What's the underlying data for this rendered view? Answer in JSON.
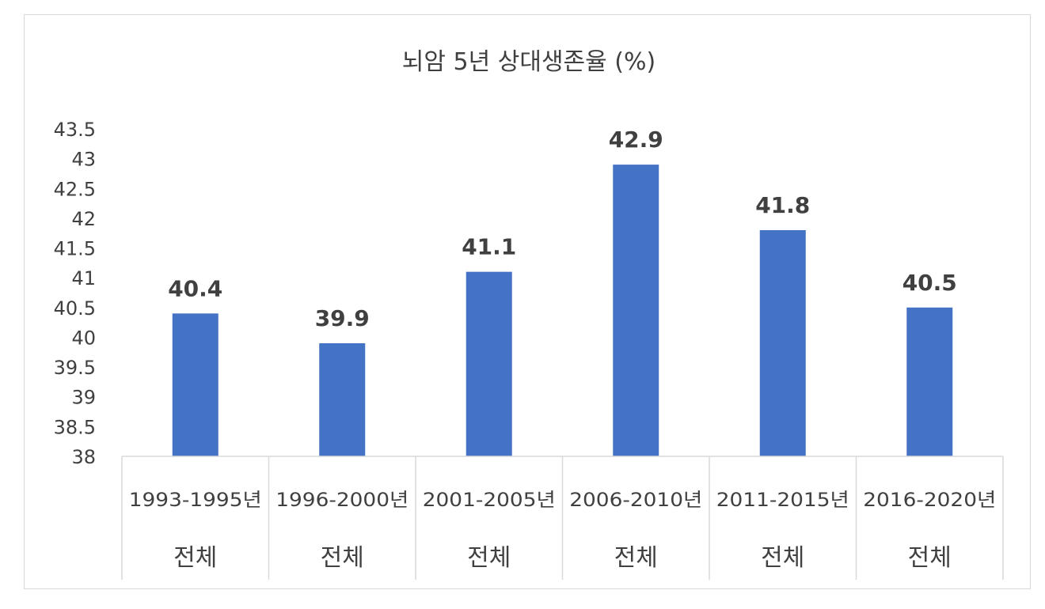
{
  "chart_data": {
    "type": "bar",
    "title": "뇌암 5년 상대생존율 (%)",
    "categories": [
      [
        "1993-1995년",
        "전체"
      ],
      [
        "1996-2000년",
        "전체"
      ],
      [
        "2001-2005년",
        "전체"
      ],
      [
        "2006-2010년",
        "전체"
      ],
      [
        "2011-2015년",
        "전체"
      ],
      [
        "2016-2020년",
        "전체"
      ]
    ],
    "values": [
      40.4,
      39.9,
      41.1,
      42.9,
      41.8,
      40.5
    ],
    "data_labels": [
      "40.4",
      "39.9",
      "41.1",
      "42.9",
      "41.8",
      "40.5"
    ],
    "ylim": [
      38,
      43.5
    ],
    "yticks": [
      "38",
      "38.5",
      "39",
      "39.5",
      "40",
      "40.5",
      "41",
      "41.5",
      "42",
      "42.5",
      "43",
      "43.5"
    ],
    "grid": false,
    "legend": "none",
    "bar_color": "#4472c4"
  }
}
